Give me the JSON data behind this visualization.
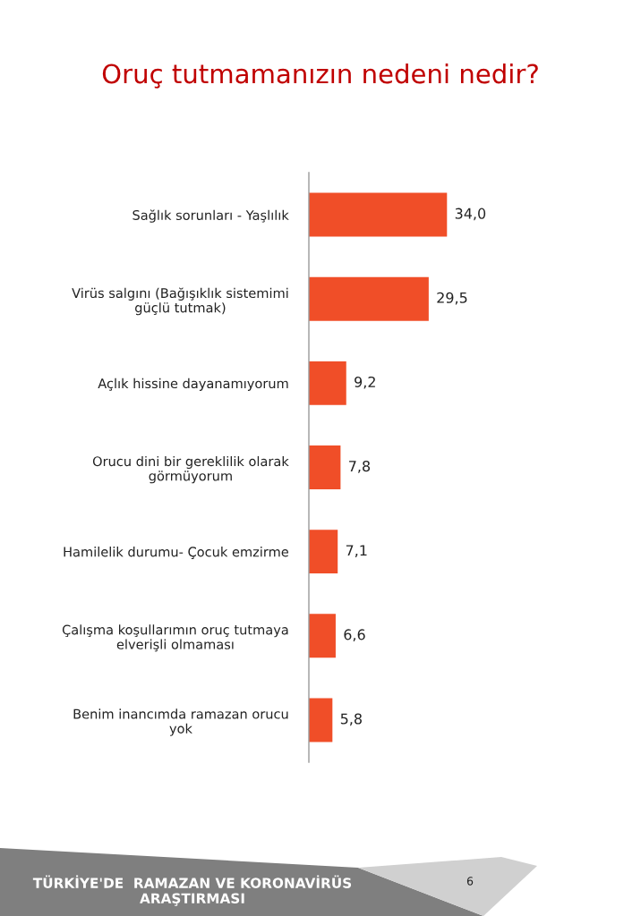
{
  "chart_data": {
    "type": "bar",
    "orientation": "horizontal",
    "title": "Oruç tutmamanızın nedeni nedir?",
    "categories": [
      "Sağlık sorunları - Yaşlılık",
      "Virüs salgını (Bağışıklık sistemimi\ngüçlü tutmak)",
      "Açlık hissine dayanamıyorum",
      "Orucu dini bir gereklilik olarak\ngörmüyorum",
      "Hamilelik durumu- Çocuk emzirme",
      "Çalışma koşullarımın oruç tutmaya\nelverişli olmaması",
      "Benim inancımda ramazan orucu\nyok"
    ],
    "values": [
      34.0,
      29.5,
      9.2,
      7.8,
      7.1,
      6.6,
      5.8
    ],
    "value_labels": [
      "34,0",
      "29,5",
      "9,2",
      "7,8",
      "7,1",
      "6,6",
      "5,8"
    ],
    "color": "#f04e28",
    "tick_labels": "y",
    "annotations": [
      "TÜRKİYE'DE  RAMAZAN VE KORONAVİRÜS\nARAŞTIRMASI",
      "6"
    ]
  }
}
